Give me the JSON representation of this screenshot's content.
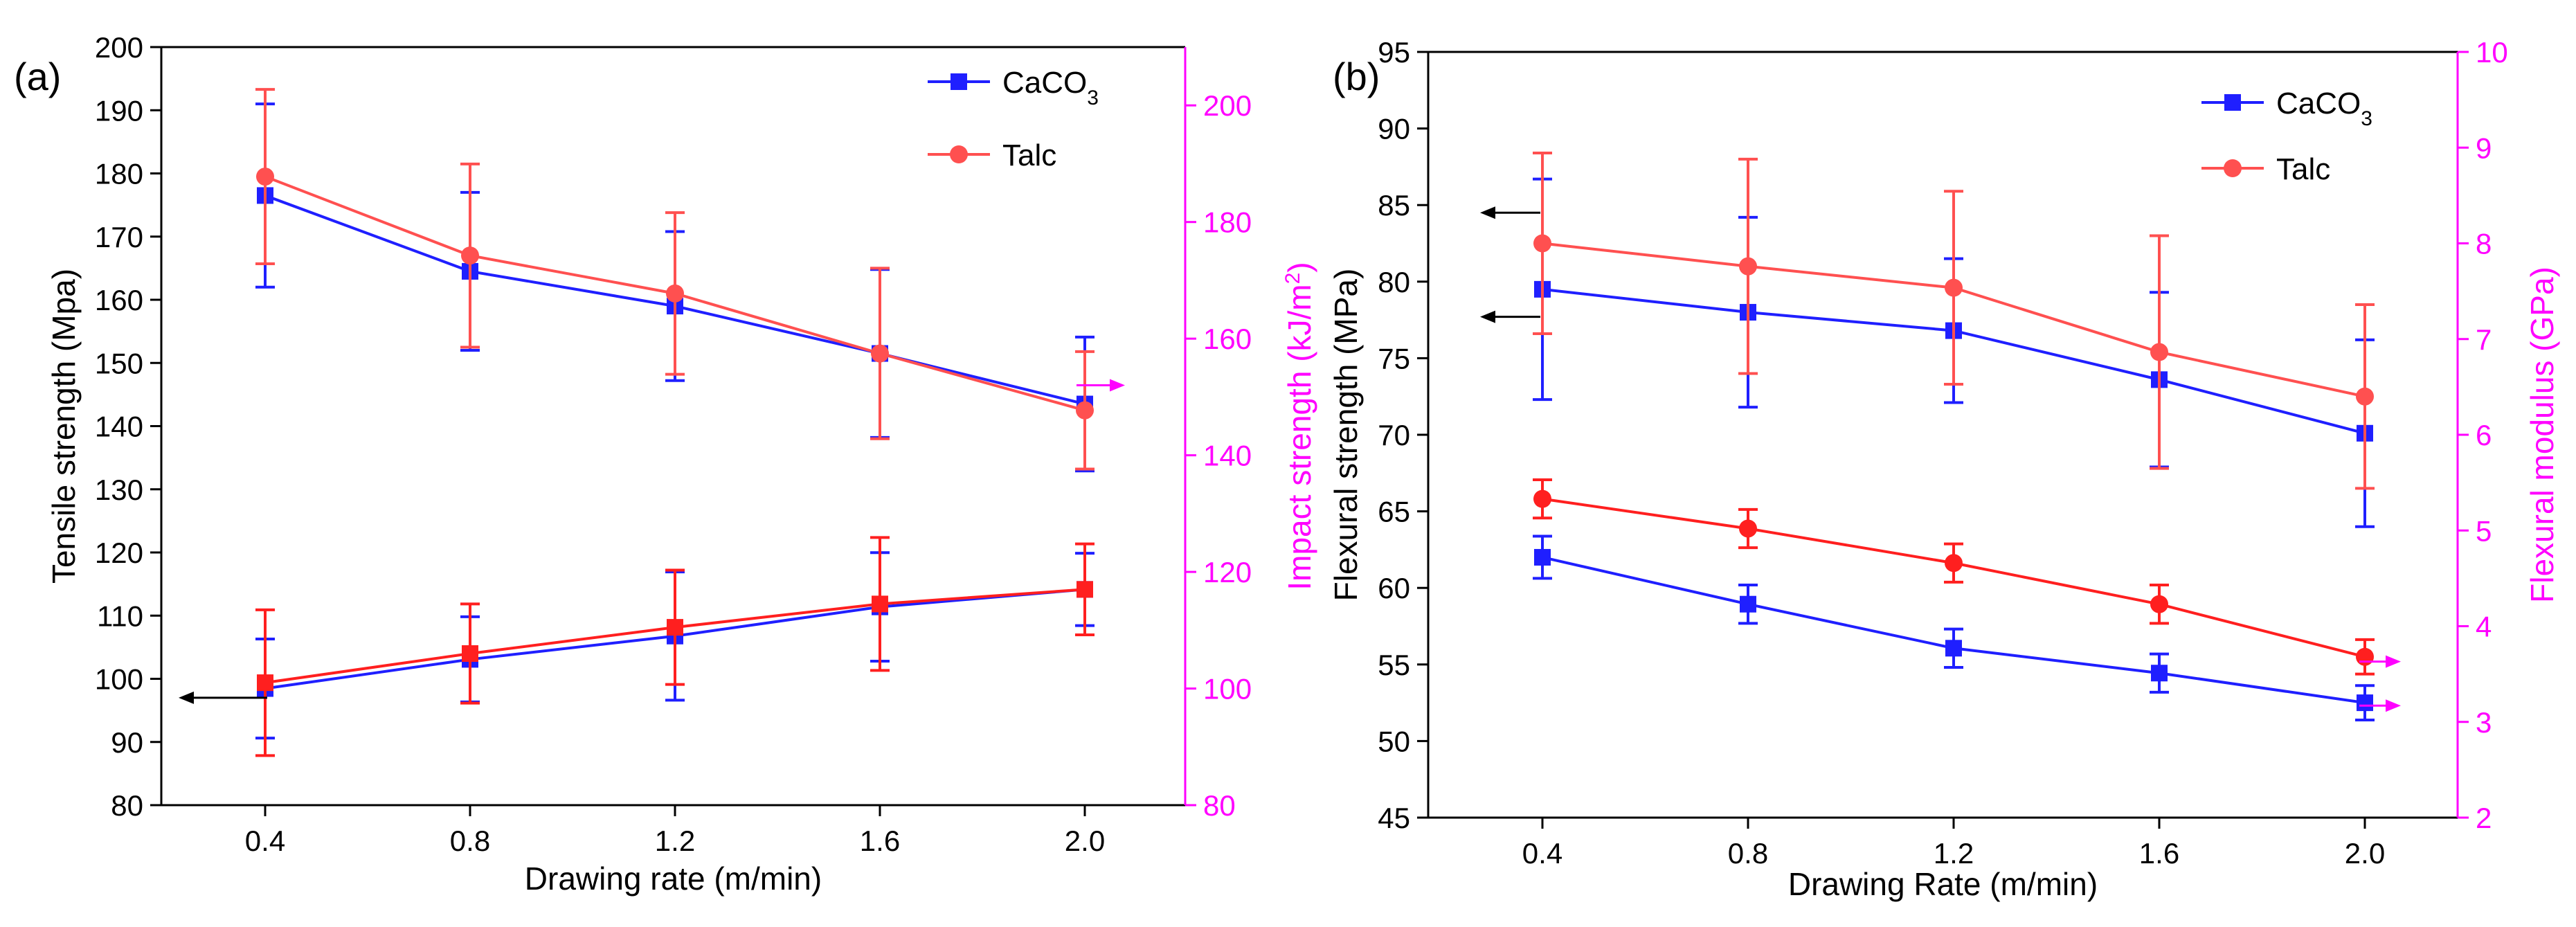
{
  "chart_data": [
    {
      "panel_label": "(a)",
      "type": "line",
      "x": [
        "0.4",
        "0.8",
        "1.2",
        "1.6",
        "2.0"
      ],
      "xlabel": "Drawing rate (m/min)",
      "ylabel_left": "Tensile strength (Mpa)",
      "ylabel_right_parts": [
        "Impact strength (kJ/m",
        "2",
        ")"
      ],
      "ylim_left": [
        80,
        200
      ],
      "yticks_left": [
        "80",
        "90",
        "100",
        "110",
        "120",
        "130",
        "140",
        "150",
        "160",
        "170",
        "180",
        "190",
        "200"
      ],
      "ylim_right": [
        80,
        210
      ],
      "yticks_right": [
        "80",
        "100",
        "120",
        "140",
        "160",
        "180",
        "200"
      ],
      "colors": {
        "axis_right": "#ff00ff",
        "arrow_left": "#000000",
        "arrow_right": "#ff00ff"
      },
      "legend": [
        {
          "name_parts": [
            "CaCO",
            "3"
          ],
          "color": "#1f1fff",
          "marker": "square"
        },
        {
          "name_parts": [
            "Talc",
            ""
          ],
          "color": "#ff5050",
          "marker": "circle"
        }
      ],
      "series": [
        {
          "name": "CaCO3 tensile",
          "axis": "left",
          "color": "#1f1fff",
          "marker": "square",
          "values": [
            176.5,
            164.5,
            159,
            151.5,
            143.5
          ],
          "errors": [
            14.5,
            12.5,
            11.8,
            13.3,
            10.6
          ]
        },
        {
          "name": "Talc tensile",
          "axis": "left",
          "color": "#ff5050",
          "marker": "circle",
          "values": [
            179.5,
            167,
            161,
            151.5,
            142.5
          ],
          "errors": [
            13.8,
            14.5,
            12.8,
            13.5,
            9.3
          ]
        },
        {
          "name": "CaCO3 impact",
          "axis": "right",
          "color": "#1f1fff",
          "marker": "square",
          "values": [
            100,
            105,
            109,
            114,
            117
          ],
          "errors": [
            8.5,
            7.3,
            11,
            9.3,
            6.2
          ]
        },
        {
          "name": "Talc impact",
          "axis": "right",
          "color": "#ff1f1f",
          "marker": "square",
          "values": [
            101,
            106,
            110.5,
            114.5,
            117
          ],
          "errors": [
            12.5,
            8.5,
            9.8,
            11.4,
            7.8
          ]
        }
      ]
    },
    {
      "panel_label": "(b)",
      "type": "line",
      "x": [
        "0.4",
        "0.8",
        "1.2",
        "1.6",
        "2.0"
      ],
      "xlabel": "Drawing Rate (m/min)",
      "ylabel_left": "Flexural strength (MPa)",
      "ylabel_right_parts": [
        "Flexural modulus (GPa)"
      ],
      "ylim_left": [
        45,
        95
      ],
      "yticks_left": [
        "45",
        "50",
        "55",
        "60",
        "65",
        "70",
        "75",
        "80",
        "85",
        "90",
        "95"
      ],
      "ylim_right": [
        2,
        10
      ],
      "yticks_right": [
        "2",
        "3",
        "4",
        "5",
        "6",
        "7",
        "8",
        "9",
        "10"
      ],
      "colors": {
        "axis_right": "#ff00ff",
        "arrow_left": "#000000",
        "arrow_right": "#ff00ff"
      },
      "legend": [
        {
          "name_parts": [
            "CaCO",
            "3"
          ],
          "color": "#1f1fff",
          "marker": "square"
        },
        {
          "name_parts": [
            "Talc",
            ""
          ],
          "color": "#ff5050",
          "marker": "circle"
        }
      ],
      "series": [
        {
          "name": "CaCO3 flexural strength",
          "axis": "left",
          "color": "#1f1fff",
          "marker": "square",
          "values": [
            79.5,
            78,
            76.8,
            73.6,
            70.1
          ],
          "errors": [
            7.2,
            6.2,
            4.7,
            5.7,
            6.1
          ]
        },
        {
          "name": "Talc flexural strength",
          "axis": "left",
          "color": "#ff5050",
          "marker": "circle",
          "values": [
            82.5,
            81,
            79.6,
            75.4,
            72.5
          ],
          "errors": [
            5.9,
            7,
            6.3,
            7.6,
            6
          ]
        },
        {
          "name": "CaCO3 flexural modulus",
          "axis": "right",
          "color": "#1f1fff",
          "marker": "square",
          "values": [
            4.72,
            4.23,
            3.77,
            3.51,
            3.2
          ],
          "errors": [
            0.22,
            0.2,
            0.2,
            0.2,
            0.18
          ]
        },
        {
          "name": "Talc flexural modulus",
          "axis": "right",
          "color": "#ff1f1f",
          "marker": "circle",
          "values": [
            5.33,
            5.02,
            4.66,
            4.23,
            3.68
          ],
          "errors": [
            0.2,
            0.2,
            0.2,
            0.2,
            0.18
          ]
        }
      ]
    }
  ]
}
